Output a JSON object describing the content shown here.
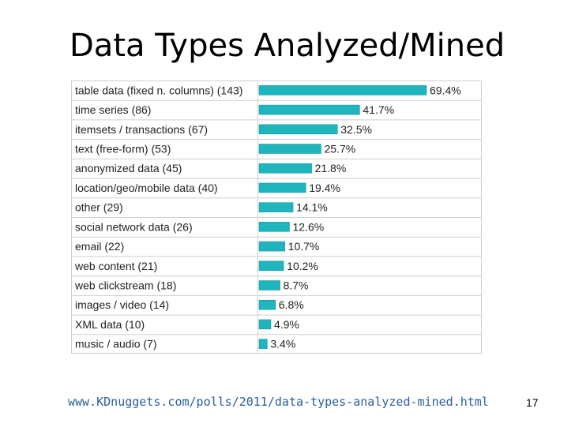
{
  "slide": {
    "title": "Data Types Analyzed/Mined",
    "footer_url": "www.KDnuggets.com/polls/2011/data-types-analyzed-mined.html",
    "page_number": "17"
  },
  "colors": {
    "bar": "#1fb5bd",
    "bar_edge": "#0e8f96",
    "grid": "#cfcfcf",
    "text": "#222222"
  },
  "chart_data": {
    "type": "bar",
    "orientation": "horizontal",
    "categories": [
      "table data (fixed n. columns) (143)",
      "time series (86)",
      "itemsets / transactions (67)",
      "text (free-form) (53)",
      "anonymized data (45)",
      "location/geo/mobile data (40)",
      "other (29)",
      "social network data (26)",
      "email (22)",
      "web content (21)",
      "web clickstream (18)",
      "images / video (14)",
      "XML data (10)",
      "music / audio (7)"
    ],
    "values": [
      69.4,
      41.7,
      32.5,
      25.7,
      21.8,
      19.4,
      14.1,
      12.6,
      10.7,
      10.2,
      8.7,
      6.8,
      4.9,
      3.4
    ],
    "data_labels": [
      "69.4%",
      "41.7%",
      "32.5%",
      "25.7%",
      "21.8%",
      "19.4%",
      "14.1%",
      "12.6%",
      "10.7%",
      "10.2%",
      "8.7%",
      "6.8%",
      "4.9%",
      "3.4%"
    ],
    "xlim": [
      0,
      69.4
    ],
    "grid": true
  }
}
